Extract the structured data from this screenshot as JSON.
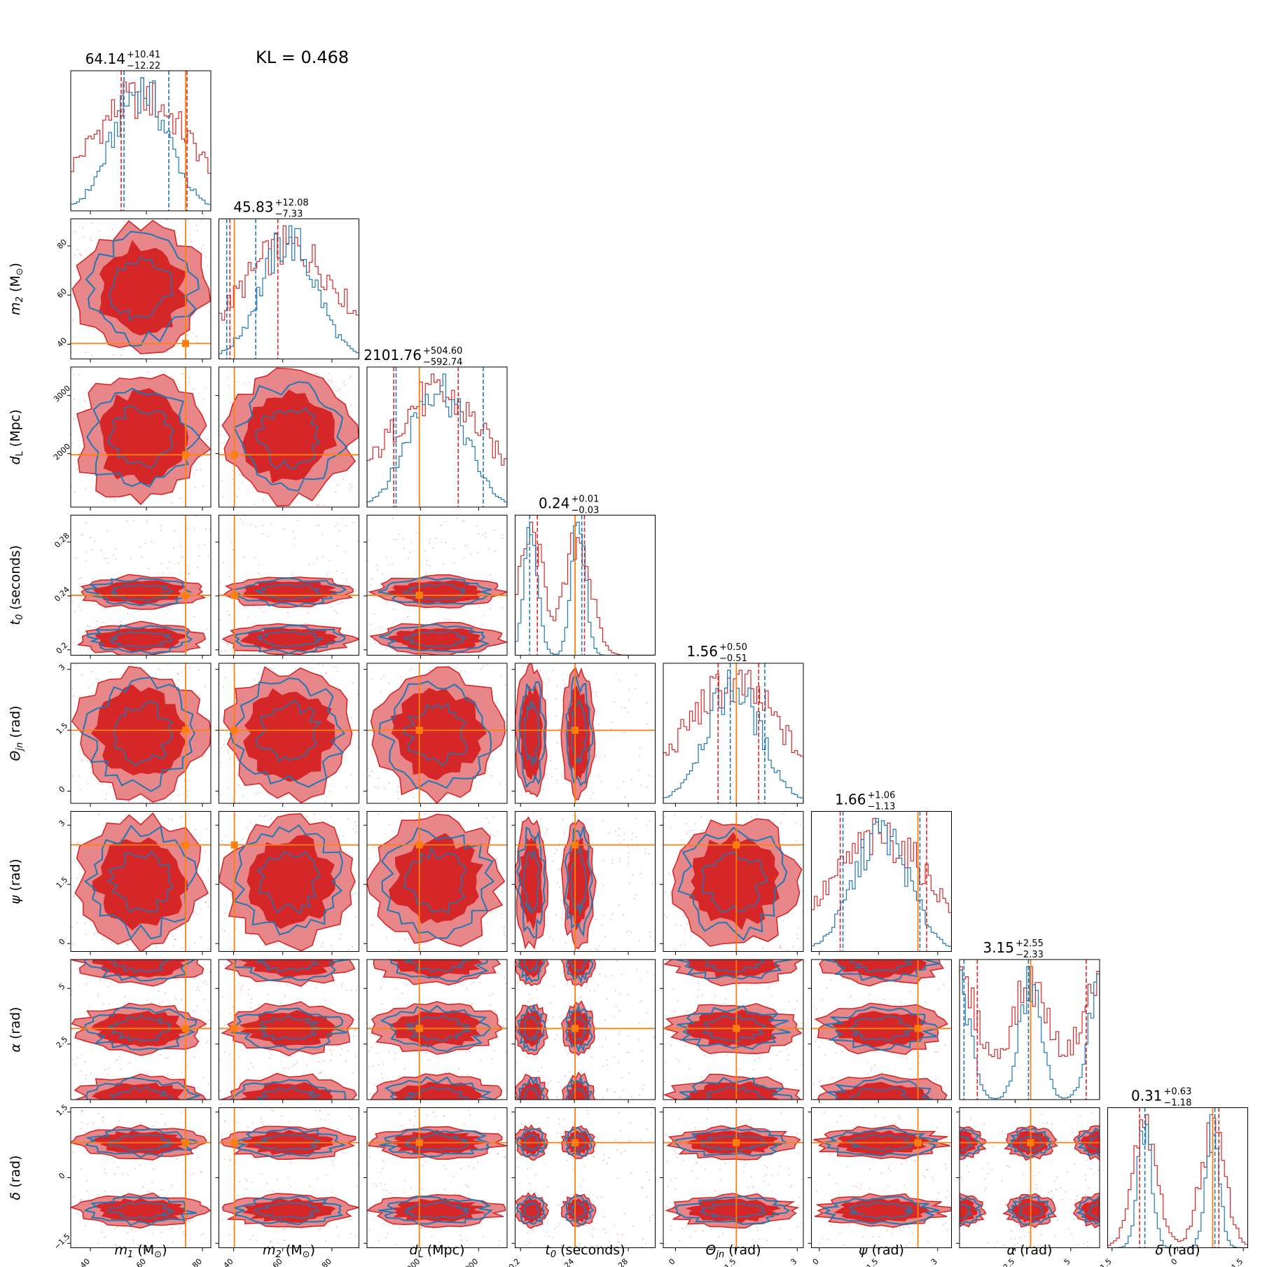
{
  "chart_data": {
    "type": "corner",
    "annotation": "KL = 0.468",
    "parameters": [
      {
        "key": "m1",
        "sym": "m",
        "sub": "1",
        "unit": "(M",
        "sub2": "⊙",
        "tail": ")",
        "median": "64.14",
        "plus": "+10.41",
        "minus": "−12.22",
        "range": [
          33,
          83
        ],
        "ticks": [
          40,
          60,
          80
        ],
        "truth": 74,
        "ci_red": [
          51,
          74.5
        ],
        "ci_blue": [
          52,
          68
        ]
      },
      {
        "key": "m2",
        "sym": "m",
        "sub": "2",
        "unit": "(M",
        "sub2": "⊙",
        "tail": ")",
        "median": "45.83",
        "plus": "+12.08",
        "minus": "−7.33",
        "range": [
          34,
          91
        ],
        "ticks": [
          40,
          60,
          80
        ],
        "truth": 40.3,
        "ci_red": [
          38.5,
          58
        ],
        "ci_blue": [
          37.2,
          49
        ]
      },
      {
        "key": "dL",
        "sym": "d",
        "sub": "L",
        "unit": "(Mpc)",
        "sub2": "",
        "tail": "",
        "median": "2101.76",
        "plus": "+504.60",
        "minus": "−592.74",
        "range": [
          1080,
          3490
        ],
        "ticks": [
          2000,
          3000
        ],
        "truth": 1980,
        "ci_red": [
          1540,
          2650
        ],
        "ci_blue": [
          1580,
          3080
        ]
      },
      {
        "key": "t0",
        "sym": "t",
        "sub": "0",
        "unit": "(seconds)",
        "sub2": "",
        "tail": "",
        "median": "0.24",
        "plus": "+0.01",
        "minus": "−0.03",
        "range": [
          0.196,
          0.3
        ],
        "ticks": [
          0.2,
          0.24,
          0.28
        ],
        "truth": 0.2405,
        "ci_red": [
          0.2125,
          0.2475
        ],
        "ci_blue": [
          0.2068,
          0.2455
        ]
      },
      {
        "key": "theta",
        "sym": "Θ",
        "sub": "jn",
        "unit": "(rad)",
        "sub2": "",
        "tail": "",
        "median": "1.56",
        "plus": "+0.50",
        "minus": "−0.51",
        "range": [
          -0.3,
          3.15
        ],
        "ticks": [
          0.0,
          1.5,
          3.0
        ],
        "truth": 1.5,
        "ci_red": [
          1.05,
          2.05
        ],
        "ci_blue": [
          1.35,
          2.2
        ]
      },
      {
        "key": "psi",
        "sym": "ψ",
        "sub": "",
        "unit": "(rad)",
        "sub2": "",
        "tail": "",
        "median": "1.66",
        "plus": "+1.06",
        "minus": "−1.13",
        "range": [
          -0.2,
          3.35
        ],
        "ticks": [
          0.0,
          1.5,
          3.0
        ],
        "truth": 2.5,
        "ci_red": [
          0.53,
          2.72
        ],
        "ci_blue": [
          0.6,
          2.55
        ]
      },
      {
        "key": "alpha",
        "sym": "α",
        "sub": "",
        "unit": "(rad)",
        "sub2": "",
        "tail": "",
        "median": "3.15",
        "plus": "+2.55",
        "minus": "−2.33",
        "range": [
          0,
          6.3
        ],
        "ticks": [
          2.5,
          5.0
        ],
        "truth": 3.2,
        "ci_red": [
          0.8,
          5.7
        ],
        "ci_blue": [
          0.2,
          3.1
        ]
      },
      {
        "key": "delta",
        "sym": "δ",
        "sub": "",
        "unit": "(rad)",
        "sub2": "",
        "tail": "",
        "median": "0.31",
        "plus": "+0.63",
        "minus": "−1.18",
        "range": [
          -1.6,
          1.6
        ],
        "ticks": [
          -1.5,
          0.0,
          1.5
        ],
        "truth": 0.8,
        "ci_red": [
          -0.87,
          0.94
        ],
        "ci_blue": [
          -0.75,
          0.85
        ]
      }
    ],
    "colors": {
      "red": "#d62728",
      "red_fill": "#e8878a",
      "blue": "#1f77b4",
      "truth": "#ff7f0e"
    },
    "series": [
      "red",
      "blue"
    ]
  }
}
